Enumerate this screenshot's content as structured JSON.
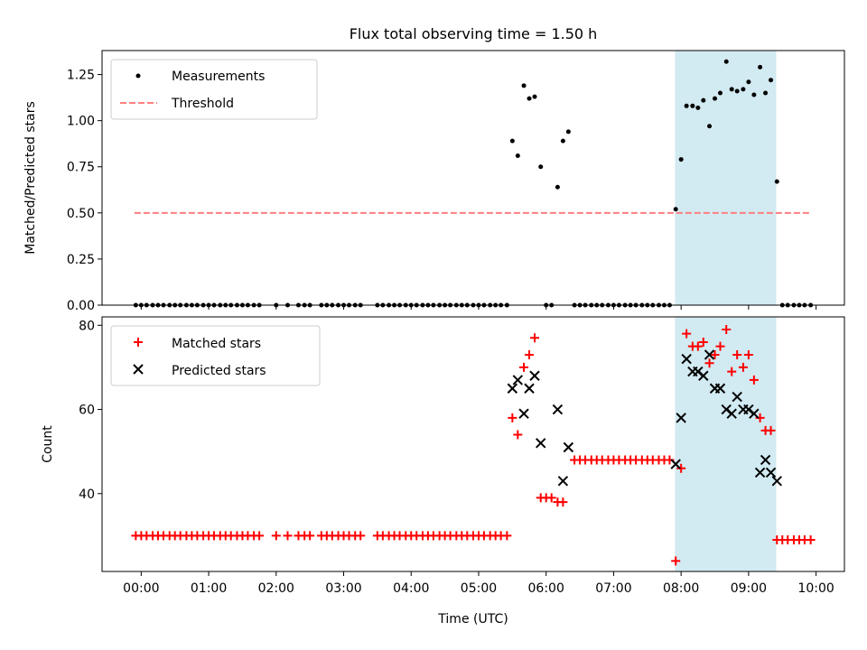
{
  "figure": {
    "title": "Flux total observing time = 1.50 h",
    "xlabel": "Time (UTC)",
    "xticks": [
      "00:00",
      "01:00",
      "02:00",
      "03:00",
      "04:00",
      "05:00",
      "06:00",
      "07:00",
      "08:00",
      "09:00",
      "10:00"
    ],
    "shade_label_hours": [
      7.91,
      9.41
    ],
    "colors": {
      "shade": "#add8e6",
      "threshold": "#ff7f7f",
      "matched": "#ff0000",
      "predicted": "#000000"
    }
  },
  "chart_data": [
    {
      "type": "scatter",
      "ylabel": "Matched/Predicted stars",
      "xlim_hours": [
        -0.58,
        10.42
      ],
      "ylim": [
        0,
        1.38
      ],
      "yticks": [
        0.0,
        0.25,
        0.5,
        0.75,
        1.0,
        1.25
      ],
      "yticklabels": [
        "0.00",
        "0.25",
        "0.50",
        "0.75",
        "1.00",
        "1.25"
      ],
      "legend": {
        "placement": "upper-left",
        "measurements": "Measurements",
        "threshold": "Threshold"
      },
      "threshold": {
        "value": 0.5,
        "x_range_hours": [
          -0.1,
          9.9
        ]
      },
      "shaded_region_hours": [
        7.91,
        9.41
      ],
      "measurements": [
        [
          -0.08,
          0
        ],
        [
          0,
          0
        ],
        [
          0.08,
          0
        ],
        [
          0.17,
          0
        ],
        [
          0.25,
          0
        ],
        [
          0.33,
          0
        ],
        [
          0.42,
          0
        ],
        [
          0.5,
          0
        ],
        [
          0.58,
          0
        ],
        [
          0.67,
          0
        ],
        [
          0.75,
          0
        ],
        [
          0.83,
          0
        ],
        [
          0.92,
          0
        ],
        [
          1.0,
          0
        ],
        [
          1.08,
          0
        ],
        [
          1.17,
          0
        ],
        [
          1.25,
          0
        ],
        [
          1.33,
          0
        ],
        [
          1.42,
          0
        ],
        [
          1.5,
          0
        ],
        [
          1.58,
          0
        ],
        [
          1.67,
          0
        ],
        [
          1.75,
          0
        ],
        [
          2.0,
          0
        ],
        [
          2.17,
          0
        ],
        [
          2.33,
          0
        ],
        [
          2.42,
          0
        ],
        [
          2.5,
          0
        ],
        [
          2.67,
          0
        ],
        [
          2.75,
          0
        ],
        [
          2.83,
          0
        ],
        [
          2.92,
          0
        ],
        [
          3.0,
          0
        ],
        [
          3.08,
          0
        ],
        [
          3.17,
          0
        ],
        [
          3.25,
          0
        ],
        [
          3.5,
          0
        ],
        [
          3.58,
          0
        ],
        [
          3.67,
          0
        ],
        [
          3.75,
          0
        ],
        [
          3.83,
          0
        ],
        [
          3.92,
          0
        ],
        [
          4.0,
          0
        ],
        [
          4.08,
          0
        ],
        [
          4.17,
          0
        ],
        [
          4.25,
          0
        ],
        [
          4.33,
          0
        ],
        [
          4.42,
          0
        ],
        [
          4.5,
          0
        ],
        [
          4.58,
          0
        ],
        [
          4.67,
          0
        ],
        [
          4.75,
          0
        ],
        [
          4.83,
          0
        ],
        [
          4.92,
          0
        ],
        [
          5.0,
          0
        ],
        [
          5.08,
          0
        ],
        [
          5.17,
          0
        ],
        [
          5.25,
          0
        ],
        [
          5.33,
          0
        ],
        [
          5.42,
          0
        ],
        [
          5.5,
          0.89
        ],
        [
          5.58,
          0.81
        ],
        [
          5.67,
          1.19
        ],
        [
          5.75,
          1.12
        ],
        [
          5.83,
          1.13
        ],
        [
          5.92,
          0.75
        ],
        [
          6.0,
          0
        ],
        [
          6.08,
          0
        ],
        [
          6.17,
          0.64
        ],
        [
          6.25,
          0.89
        ],
        [
          6.33,
          0.94
        ],
        [
          6.42,
          0
        ],
        [
          6.5,
          0
        ],
        [
          6.58,
          0
        ],
        [
          6.67,
          0
        ],
        [
          6.75,
          0
        ],
        [
          6.83,
          0
        ],
        [
          6.92,
          0
        ],
        [
          7.0,
          0
        ],
        [
          7.08,
          0
        ],
        [
          7.17,
          0
        ],
        [
          7.25,
          0
        ],
        [
          7.33,
          0
        ],
        [
          7.42,
          0
        ],
        [
          7.5,
          0
        ],
        [
          7.58,
          0
        ],
        [
          7.67,
          0
        ],
        [
          7.75,
          0
        ],
        [
          7.83,
          0
        ],
        [
          7.92,
          0.52
        ],
        [
          8.0,
          0.79
        ],
        [
          8.08,
          1.08
        ],
        [
          8.17,
          1.08
        ],
        [
          8.25,
          1.07
        ],
        [
          8.33,
          1.11
        ],
        [
          8.42,
          0.97
        ],
        [
          8.5,
          1.12
        ],
        [
          8.58,
          1.15
        ],
        [
          8.67,
          1.32
        ],
        [
          8.75,
          1.17
        ],
        [
          8.83,
          1.16
        ],
        [
          8.92,
          1.17
        ],
        [
          9.0,
          1.21
        ],
        [
          9.08,
          1.14
        ],
        [
          9.17,
          1.29
        ],
        [
          9.25,
          1.15
        ],
        [
          9.33,
          1.22
        ],
        [
          9.42,
          0.67
        ],
        [
          9.5,
          0
        ],
        [
          9.58,
          0
        ],
        [
          9.67,
          0
        ],
        [
          9.75,
          0
        ],
        [
          9.83,
          0
        ],
        [
          9.92,
          0
        ]
      ]
    },
    {
      "type": "scatter",
      "ylabel": "Count",
      "xlim_hours": [
        -0.58,
        10.42
      ],
      "ylim": [
        21.5,
        82
      ],
      "yticks": [
        40,
        60,
        80
      ],
      "yticklabels": [
        "40",
        "60",
        "80"
      ],
      "legend": {
        "placement": "upper-left",
        "matched": "Matched stars",
        "predicted": "Predicted stars"
      },
      "shaded_region_hours": [
        7.91,
        9.41
      ],
      "matched": [
        [
          -0.08,
          30
        ],
        [
          0,
          30
        ],
        [
          0.08,
          30
        ],
        [
          0.17,
          30
        ],
        [
          0.25,
          30
        ],
        [
          0.33,
          30
        ],
        [
          0.42,
          30
        ],
        [
          0.5,
          30
        ],
        [
          0.58,
          30
        ],
        [
          0.67,
          30
        ],
        [
          0.75,
          30
        ],
        [
          0.83,
          30
        ],
        [
          0.92,
          30
        ],
        [
          1.0,
          30
        ],
        [
          1.08,
          30
        ],
        [
          1.17,
          30
        ],
        [
          1.25,
          30
        ],
        [
          1.33,
          30
        ],
        [
          1.42,
          30
        ],
        [
          1.5,
          30
        ],
        [
          1.58,
          30
        ],
        [
          1.67,
          30
        ],
        [
          1.75,
          30
        ],
        [
          2.0,
          30
        ],
        [
          2.17,
          30
        ],
        [
          2.33,
          30
        ],
        [
          2.42,
          30
        ],
        [
          2.5,
          30
        ],
        [
          2.67,
          30
        ],
        [
          2.75,
          30
        ],
        [
          2.83,
          30
        ],
        [
          2.92,
          30
        ],
        [
          3.0,
          30
        ],
        [
          3.08,
          30
        ],
        [
          3.17,
          30
        ],
        [
          3.25,
          30
        ],
        [
          3.5,
          30
        ],
        [
          3.58,
          30
        ],
        [
          3.67,
          30
        ],
        [
          3.75,
          30
        ],
        [
          3.83,
          30
        ],
        [
          3.92,
          30
        ],
        [
          4.0,
          30
        ],
        [
          4.08,
          30
        ],
        [
          4.17,
          30
        ],
        [
          4.25,
          30
        ],
        [
          4.33,
          30
        ],
        [
          4.42,
          30
        ],
        [
          4.5,
          30
        ],
        [
          4.58,
          30
        ],
        [
          4.67,
          30
        ],
        [
          4.75,
          30
        ],
        [
          4.83,
          30
        ],
        [
          4.92,
          30
        ],
        [
          5.0,
          30
        ],
        [
          5.08,
          30
        ],
        [
          5.17,
          30
        ],
        [
          5.25,
          30
        ],
        [
          5.33,
          30
        ],
        [
          5.42,
          30
        ],
        [
          5.5,
          58
        ],
        [
          5.58,
          54
        ],
        [
          5.67,
          70
        ],
        [
          5.75,
          73
        ],
        [
          5.83,
          77
        ],
        [
          5.92,
          39
        ],
        [
          6.0,
          39
        ],
        [
          6.08,
          39
        ],
        [
          6.17,
          38
        ],
        [
          6.25,
          38
        ],
        [
          6.42,
          48
        ],
        [
          6.5,
          48
        ],
        [
          6.58,
          48
        ],
        [
          6.67,
          48
        ],
        [
          6.75,
          48
        ],
        [
          6.83,
          48
        ],
        [
          6.92,
          48
        ],
        [
          7.0,
          48
        ],
        [
          7.08,
          48
        ],
        [
          7.17,
          48
        ],
        [
          7.25,
          48
        ],
        [
          7.33,
          48
        ],
        [
          7.42,
          48
        ],
        [
          7.5,
          48
        ],
        [
          7.58,
          48
        ],
        [
          7.67,
          48
        ],
        [
          7.75,
          48
        ],
        [
          7.83,
          48
        ],
        [
          7.92,
          24
        ],
        [
          8.0,
          46
        ],
        [
          8.08,
          78
        ],
        [
          8.17,
          75
        ],
        [
          8.25,
          75
        ],
        [
          8.33,
          76
        ],
        [
          8.42,
          71
        ],
        [
          8.5,
          73
        ],
        [
          8.58,
          75
        ],
        [
          8.67,
          79
        ],
        [
          8.75,
          69
        ],
        [
          8.83,
          73
        ],
        [
          8.92,
          70
        ],
        [
          9.0,
          73
        ],
        [
          9.08,
          67
        ],
        [
          9.17,
          58
        ],
        [
          9.25,
          55
        ],
        [
          9.33,
          55
        ],
        [
          9.42,
          29
        ],
        [
          9.5,
          29
        ],
        [
          9.58,
          29
        ],
        [
          9.67,
          29
        ],
        [
          9.75,
          29
        ],
        [
          9.83,
          29
        ],
        [
          9.92,
          29
        ]
      ],
      "predicted": [
        [
          5.5,
          65
        ],
        [
          5.58,
          67
        ],
        [
          5.67,
          59
        ],
        [
          5.75,
          65
        ],
        [
          5.83,
          68
        ],
        [
          5.92,
          52
        ],
        [
          6.17,
          60
        ],
        [
          6.25,
          43
        ],
        [
          6.33,
          51
        ],
        [
          7.92,
          47
        ],
        [
          8.0,
          58
        ],
        [
          8.08,
          72
        ],
        [
          8.17,
          69
        ],
        [
          8.25,
          69
        ],
        [
          8.33,
          68
        ],
        [
          8.42,
          73
        ],
        [
          8.5,
          65
        ],
        [
          8.58,
          65
        ],
        [
          8.67,
          60
        ],
        [
          8.75,
          59
        ],
        [
          8.83,
          63
        ],
        [
          8.92,
          60
        ],
        [
          9.0,
          60
        ],
        [
          9.08,
          59
        ],
        [
          9.17,
          45
        ],
        [
          9.25,
          48
        ],
        [
          9.33,
          45
        ],
        [
          9.42,
          43
        ]
      ]
    }
  ]
}
